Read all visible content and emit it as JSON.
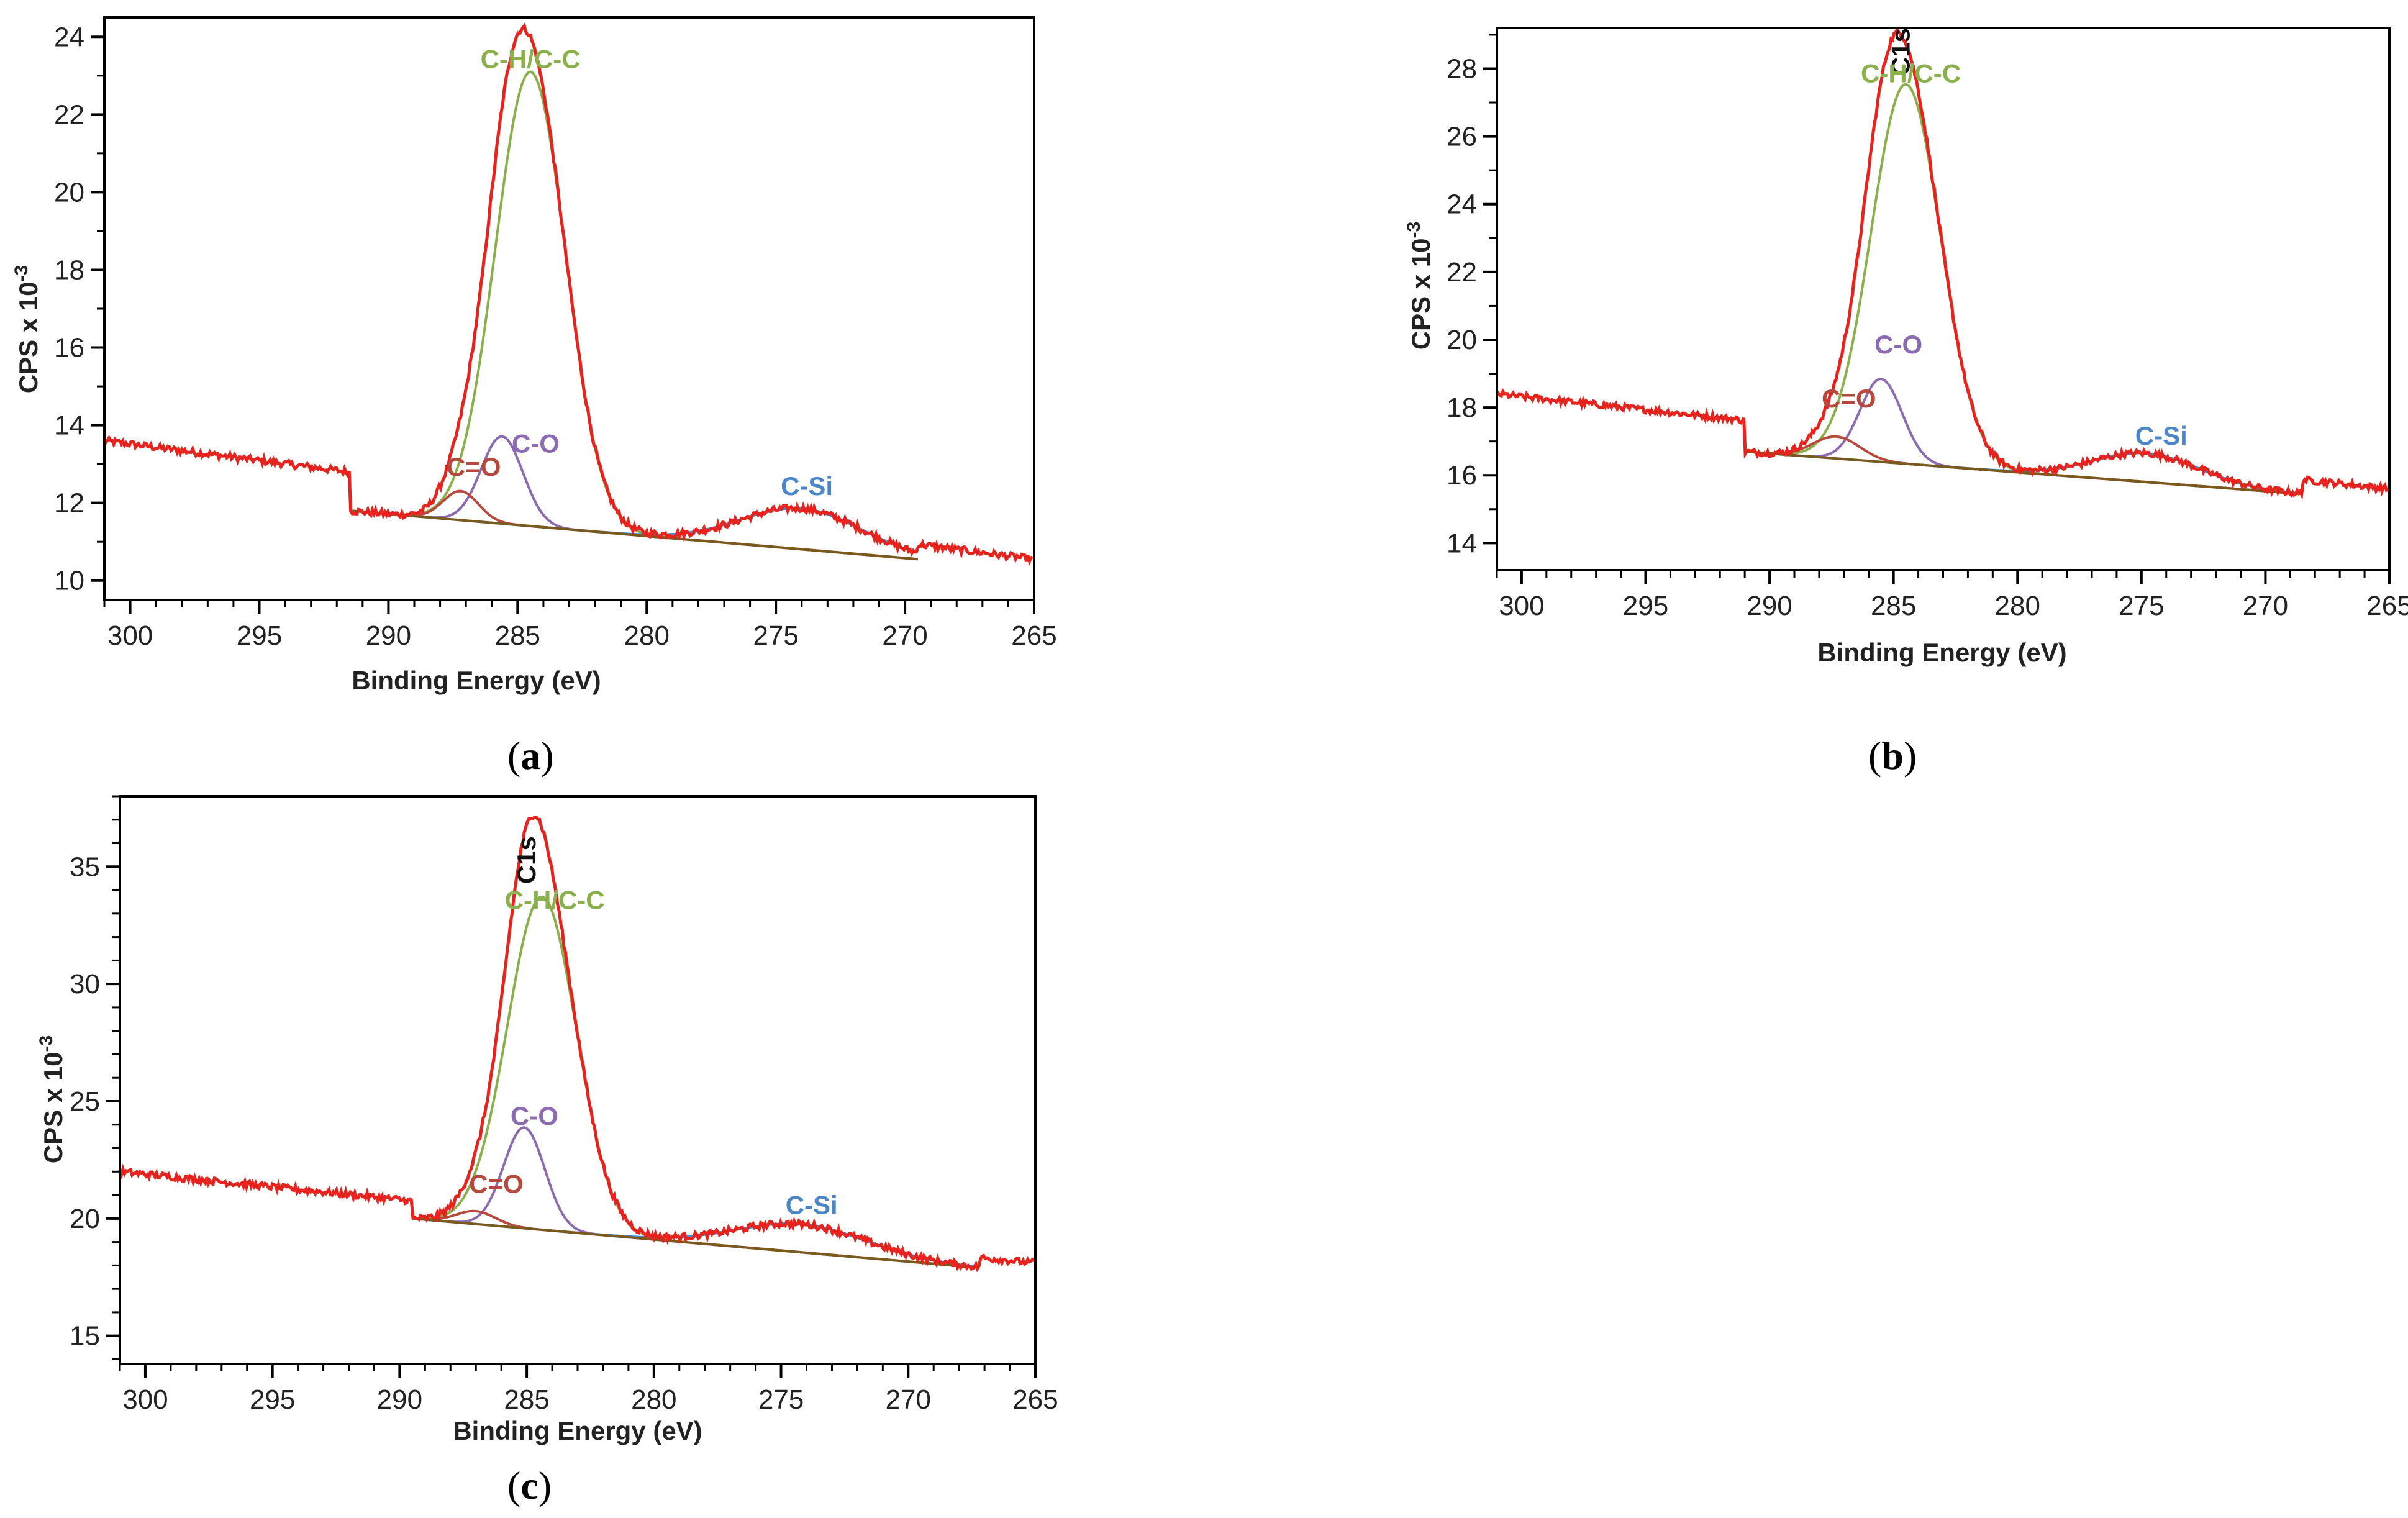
{
  "colors": {
    "envelope": "#e8231e",
    "fit_CH": "#8ab04b",
    "fit_CO": "#8c6bb3",
    "fit_CdO": "#b9483c",
    "fit_CSi": "#4a86c8",
    "background": "#7a5a1c"
  },
  "panels": [
    {
      "paren_open": "(",
      "letter": "a",
      "paren_close": ")"
    },
    {
      "paren_open": "(",
      "letter": "b",
      "paren_close": ")"
    },
    {
      "paren_open": "(",
      "letter": "c",
      "paren_close": ")"
    }
  ],
  "chart_data": [
    {
      "type": "line",
      "panel": "a",
      "xlabel": "Binding Energy (eV)",
      "ylabel_main": "CPS x 10",
      "ylabel_exp": "-3",
      "xlim": [
        301,
        265
      ],
      "ylim": [
        9.5,
        24.5
      ],
      "xticks": [
        300,
        295,
        290,
        285,
        280,
        275,
        270,
        265
      ],
      "yticks": [
        10,
        12,
        14,
        16,
        18,
        20,
        22,
        24
      ],
      "raw": {
        "x_start": 301,
        "x_end": 265,
        "left": 13.6,
        "right": 10.55
      },
      "baseline": {
        "x_start": 291.5,
        "x_end": 269.5,
        "left": 11.8,
        "right": 10.55
      },
      "peaks": [
        {
          "name": "C-H/C-C",
          "center": 284.5,
          "height": 11.7,
          "fwhm": 3.2,
          "color_key": "fit_CH"
        },
        {
          "name": "C-O",
          "center": 285.6,
          "height": 2.25,
          "fwhm": 1.9,
          "color_key": "fit_CO"
        },
        {
          "name": "C=O",
          "center": 287.2,
          "height": 0.75,
          "fwhm": 1.6,
          "color_key": "fit_CdO"
        },
        {
          "name": "C-Si",
          "center": 274.0,
          "height": 1.05,
          "fwhm": 5.5,
          "color_key": "fit_CSi"
        }
      ],
      "annotations": [
        {
          "text": "C-H/C-C",
          "x": 284.5,
          "y": 23.2,
          "color_key": "fit_CH"
        },
        {
          "text": "C-O",
          "x": 284.3,
          "y": 13.3,
          "color_key": "fit_CO"
        },
        {
          "text": "C=O",
          "x": 286.7,
          "y": 12.7,
          "color_key": "fit_CdO"
        },
        {
          "text": "C-Si",
          "x": 273.8,
          "y": 12.2,
          "color_key": "fit_CSi"
        }
      ]
    },
    {
      "type": "line",
      "panel": "b",
      "xlabel": "Binding Energy (eV)",
      "ylabel_main": "CPS x 10",
      "ylabel_exp": "-3",
      "xlim": [
        301,
        265
      ],
      "ylim": [
        13.2,
        29.2
      ],
      "xticks": [
        300,
        295,
        290,
        285,
        280,
        275,
        270,
        265
      ],
      "yticks": [
        14,
        16,
        18,
        20,
        22,
        24,
        26,
        28
      ],
      "raw": {
        "x_start": 301,
        "x_end": 265,
        "left": 18.4,
        "right": 15.6
      },
      "baseline": {
        "x_start": 291,
        "x_end": 268.5,
        "left": 16.7,
        "right": 15.45
      },
      "peaks": [
        {
          "name": "C-H/C-C",
          "center": 284.5,
          "height": 11.2,
          "fwhm": 3.3,
          "color_key": "fit_CH"
        },
        {
          "name": "C-O",
          "center": 285.5,
          "height": 2.45,
          "fwhm": 2.0,
          "color_key": "fit_CO"
        },
        {
          "name": "C=O",
          "center": 287.3,
          "height": 0.65,
          "fwhm": 2.2,
          "color_key": "fit_CdO"
        },
        {
          "name": "C-Si",
          "center": 274.8,
          "height": 0.85,
          "fwhm": 5.0,
          "color_key": "fit_CSi"
        }
      ],
      "annotations": [
        {
          "text": "C1s",
          "x": 284.7,
          "y": 29.2,
          "rotate": true,
          "color_key": "text"
        },
        {
          "text": "C-H/C-C",
          "x": 284.3,
          "y": 27.6,
          "color_key": "fit_CH"
        },
        {
          "text": "C-O",
          "x": 284.8,
          "y": 19.6,
          "color_key": "fit_CO"
        },
        {
          "text": "C=O",
          "x": 286.8,
          "y": 18.0,
          "color_key": "fit_CdO"
        },
        {
          "text": "C-Si",
          "x": 274.2,
          "y": 16.9,
          "color_key": "fit_CSi"
        }
      ]
    },
    {
      "type": "line",
      "panel": "c",
      "xlabel": "Binding Energy (eV)",
      "ylabel_main": "CPS x 10",
      "ylabel_exp": "-3",
      "xlim": [
        301,
        265
      ],
      "ylim": [
        13.8,
        38
      ],
      "xticks": [
        300,
        295,
        290,
        285,
        280,
        275,
        270,
        265
      ],
      "yticks": [
        15,
        20,
        25,
        30,
        35
      ],
      "raw": {
        "x_start": 301,
        "x_end": 265,
        "left": 22.0,
        "right": 18.1
      },
      "baseline": {
        "x_start": 289.5,
        "x_end": 267.2,
        "left": 20.0,
        "right": 17.9
      },
      "peaks": [
        {
          "name": "C-H/C-C",
          "center": 284.4,
          "height": 14.2,
          "fwhm": 3.2,
          "color_key": "fit_CH"
        },
        {
          "name": "C-O",
          "center": 285.1,
          "height": 4.3,
          "fwhm": 1.9,
          "color_key": "fit_CO"
        },
        {
          "name": "C=O",
          "center": 287.0,
          "height": 0.55,
          "fwhm": 1.8,
          "color_key": "fit_CdO"
        },
        {
          "name": "C-Si",
          "center": 274.2,
          "height": 1.2,
          "fwhm": 6.0,
          "color_key": "fit_CSi"
        }
      ],
      "annotations": [
        {
          "text": "C1s",
          "x": 285.0,
          "y": 36.3,
          "rotate": true,
          "color_key": "text"
        },
        {
          "text": "C-H/C-C",
          "x": 283.9,
          "y": 33.2,
          "color_key": "fit_CH"
        },
        {
          "text": "C-O",
          "x": 284.7,
          "y": 24.0,
          "color_key": "fit_CO"
        },
        {
          "text": "C=O",
          "x": 286.2,
          "y": 21.1,
          "color_key": "fit_CdO"
        },
        {
          "text": "C-Si",
          "x": 273.8,
          "y": 20.2,
          "color_key": "fit_CSi"
        }
      ]
    }
  ]
}
